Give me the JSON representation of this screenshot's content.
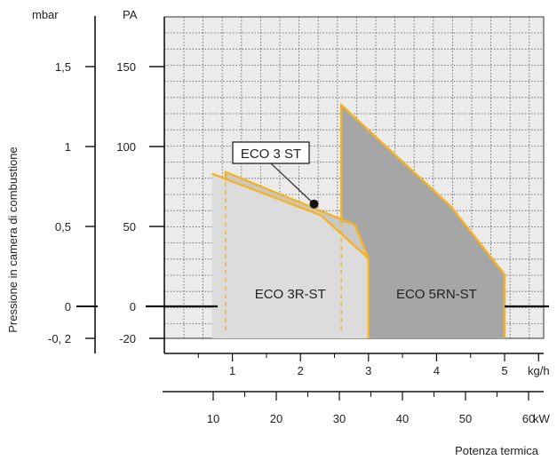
{
  "chart_data": {
    "type": "area",
    "title": "",
    "left_axis_unit": "mbar",
    "pa_axis_unit": "PA",
    "ylabel": "Pressione in camera di combustione",
    "xlabel": "Potenza termica",
    "mbar_ticks": [
      {
        "label": "1,5",
        "value": 1.5
      },
      {
        "label": "1",
        "value": 1
      },
      {
        "label": "0,5",
        "value": 0.5
      },
      {
        "label": "0",
        "value": 0
      },
      {
        "label": "-0, 2",
        "value": -0.2
      }
    ],
    "pa_ticks": [
      {
        "label": "150",
        "value": 150
      },
      {
        "label": "100",
        "value": 100
      },
      {
        "label": "50",
        "value": 50
      },
      {
        "label": "0",
        "value": 0
      },
      {
        "label": "-20",
        "value": -20
      }
    ],
    "x_kgh": {
      "unit": "kg/h",
      "range": [
        0,
        5.5
      ],
      "ticks": [
        {
          "label": "1",
          "value": 1
        },
        {
          "label": "2",
          "value": 2
        },
        {
          "label": "3",
          "value": 3
        },
        {
          "label": "4",
          "value": 4
        },
        {
          "label": "5",
          "value": 5
        }
      ]
    },
    "x_kw": {
      "unit": "kW",
      "range": [
        6.5,
        67
      ],
      "ticks": [
        {
          "label": "10",
          "value": 10
        },
        {
          "label": "20",
          "value": 20
        },
        {
          "label": "30",
          "value": 30
        },
        {
          "label": "40",
          "value": 40
        },
        {
          "label": "50",
          "value": 50
        },
        {
          "label": "60",
          "value": 60
        }
      ]
    },
    "ylim_pa": [
      -20,
      160
    ],
    "grid": true,
    "series": [
      {
        "name": "ECO 3R-ST",
        "fill": "#dcdcdc",
        "points_kgh_pa": [
          [
            0.7,
            83
          ],
          [
            2.3,
            57
          ],
          [
            3.0,
            30
          ],
          [
            3.0,
            -20
          ],
          [
            0.7,
            -20
          ]
        ],
        "outline_kgh_pa": [
          [
            0.7,
            83
          ],
          [
            2.3,
            57
          ],
          [
            3.0,
            30
          ],
          [
            3.0,
            -20
          ]
        ],
        "dashed_x_kgh": [
          0.9,
          2.6
        ]
      },
      {
        "name": "ECO 3 ST",
        "fill": "#c8c8c8",
        "points_kgh_pa": [
          [
            0.9,
            84
          ],
          [
            2.8,
            51
          ],
          [
            3.0,
            30
          ],
          [
            2.3,
            57
          ],
          [
            0.9,
            79
          ]
        ],
        "outline_kgh_pa": [
          [
            0.9,
            79
          ],
          [
            0.9,
            84
          ],
          [
            2.8,
            51
          ],
          [
            3.0,
            30
          ]
        ]
      },
      {
        "name": "ECO 5RN-ST",
        "fill": "#a6a6a6",
        "points_kgh_pa": [
          [
            2.6,
            126
          ],
          [
            4.2,
            63
          ],
          [
            5.0,
            20
          ],
          [
            5.0,
            -20
          ],
          [
            3.0,
            -20
          ],
          [
            3.0,
            30
          ],
          [
            2.8,
            51
          ],
          [
            2.6,
            53
          ]
        ],
        "outline_kgh_pa": [
          [
            2.6,
            53
          ],
          [
            2.6,
            126
          ],
          [
            4.2,
            63
          ],
          [
            5.0,
            20
          ],
          [
            5.0,
            -20
          ]
        ]
      }
    ],
    "callout": {
      "label": "ECO 3 ST",
      "target_kgh_pa": [
        2.2,
        64
      ]
    },
    "outline_color": "#f5b324"
  }
}
